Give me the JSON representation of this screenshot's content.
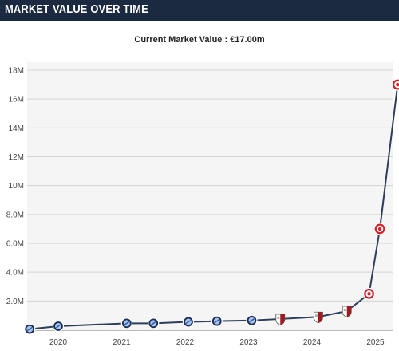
{
  "header": {
    "title": "MARKET VALUE OVER TIME"
  },
  "subtitle": "Current Market Value : €17.00m",
  "colors": {
    "header_bg": "#1b2a41",
    "line": "#2c3e5a",
    "plot_bg": "#f5f5f5",
    "grid": "#d4d4d4",
    "club_a": "#2a5db0",
    "club_b": "#9c1c22",
    "club_c": "#d91e2a"
  },
  "chart_data": {
    "type": "line",
    "title": "",
    "xlabel": "",
    "ylabel": "",
    "ylim": [
      0,
      18
    ],
    "y_ticks": [
      {
        "value": 2,
        "label": "2.0M"
      },
      {
        "value": 4,
        "label": "4.0M"
      },
      {
        "value": 6,
        "label": "6.0M"
      },
      {
        "value": 8,
        "label": "8.0M"
      },
      {
        "value": 10,
        "label": "10M"
      },
      {
        "value": 12,
        "label": "12M"
      },
      {
        "value": 14,
        "label": "14M"
      },
      {
        "value": 16,
        "label": "16M"
      },
      {
        "value": 18,
        "label": "18M"
      }
    ],
    "x_ticks": [
      {
        "value": 2020.0,
        "label": "2020"
      },
      {
        "value": 2021.0,
        "label": "2021"
      },
      {
        "value": 2022.0,
        "label": "2022"
      },
      {
        "value": 2023.0,
        "label": "2023"
      },
      {
        "value": 2024.0,
        "label": "2024"
      },
      {
        "value": 2025.0,
        "label": "2025"
      }
    ],
    "xlim": [
      2019.5,
      2025.35
    ],
    "grid": true,
    "series": [
      {
        "points": [
          {
            "x": 2019.55,
            "y": 0.05,
            "club": "club_a"
          },
          {
            "x": 2020.0,
            "y": 0.25,
            "club": "club_a"
          },
          {
            "x": 2021.08,
            "y": 0.45,
            "club": "club_a"
          },
          {
            "x": 2021.5,
            "y": 0.45,
            "club": "club_a"
          },
          {
            "x": 2022.05,
            "y": 0.55,
            "club": "club_a"
          },
          {
            "x": 2022.5,
            "y": 0.6,
            "club": "club_a"
          },
          {
            "x": 2023.05,
            "y": 0.65,
            "club": "club_a"
          },
          {
            "x": 2023.5,
            "y": 0.75,
            "club": "club_b"
          },
          {
            "x": 2024.1,
            "y": 0.9,
            "club": "club_b"
          },
          {
            "x": 2024.55,
            "y": 1.3,
            "club": "club_b"
          },
          {
            "x": 2024.9,
            "y": 2.5,
            "club": "club_c"
          },
          {
            "x": 2025.07,
            "y": 7.0,
            "club": "club_c"
          },
          {
            "x": 2025.35,
            "y": 17.0,
            "club": "club_c"
          }
        ]
      }
    ]
  }
}
